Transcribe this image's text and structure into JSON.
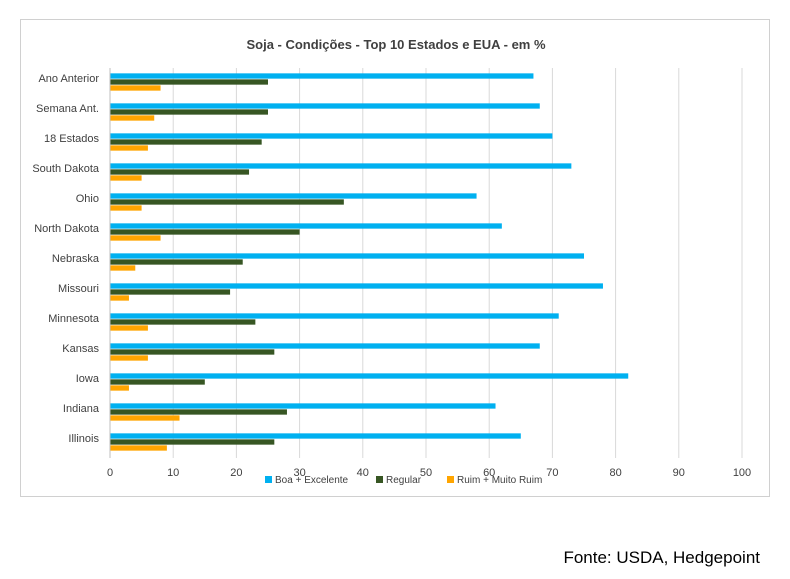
{
  "chart_data": {
    "type": "bar",
    "orientation": "horizontal",
    "title": "Soja - Condições - Top 10 Estados e EUA - em %",
    "xlabel": "",
    "ylabel": "",
    "xlim": [
      0,
      100
    ],
    "xticks": [
      0,
      10,
      20,
      30,
      40,
      50,
      60,
      70,
      80,
      90,
      100
    ],
    "grid": true,
    "legend_position": "bottom",
    "categories": [
      "Ano Anterior",
      "Semana Ant.",
      "18 Estados",
      "South Dakota",
      "Ohio",
      "North Dakota",
      "Nebraska",
      "Missouri",
      "Minnesota",
      "Kansas",
      "Iowa",
      "Indiana",
      "Illinois"
    ],
    "series": [
      {
        "name": "Boa + Excelente",
        "color": "#00b0f0",
        "values": [
          67,
          68,
          70,
          73,
          58,
          62,
          75,
          78,
          71,
          68,
          82,
          61,
          65
        ]
      },
      {
        "name": "Regular",
        "color": "#375623",
        "values": [
          25,
          25,
          24,
          22,
          37,
          30,
          21,
          19,
          23,
          26,
          15,
          28,
          26
        ]
      },
      {
        "name": "Ruim + Muito Ruim",
        "color": "#ffa500",
        "values": [
          8,
          7,
          6,
          5,
          5,
          8,
          4,
          3,
          6,
          6,
          3,
          11,
          9
        ]
      }
    ]
  },
  "source": "Fonte: USDA, Hedgepoint"
}
